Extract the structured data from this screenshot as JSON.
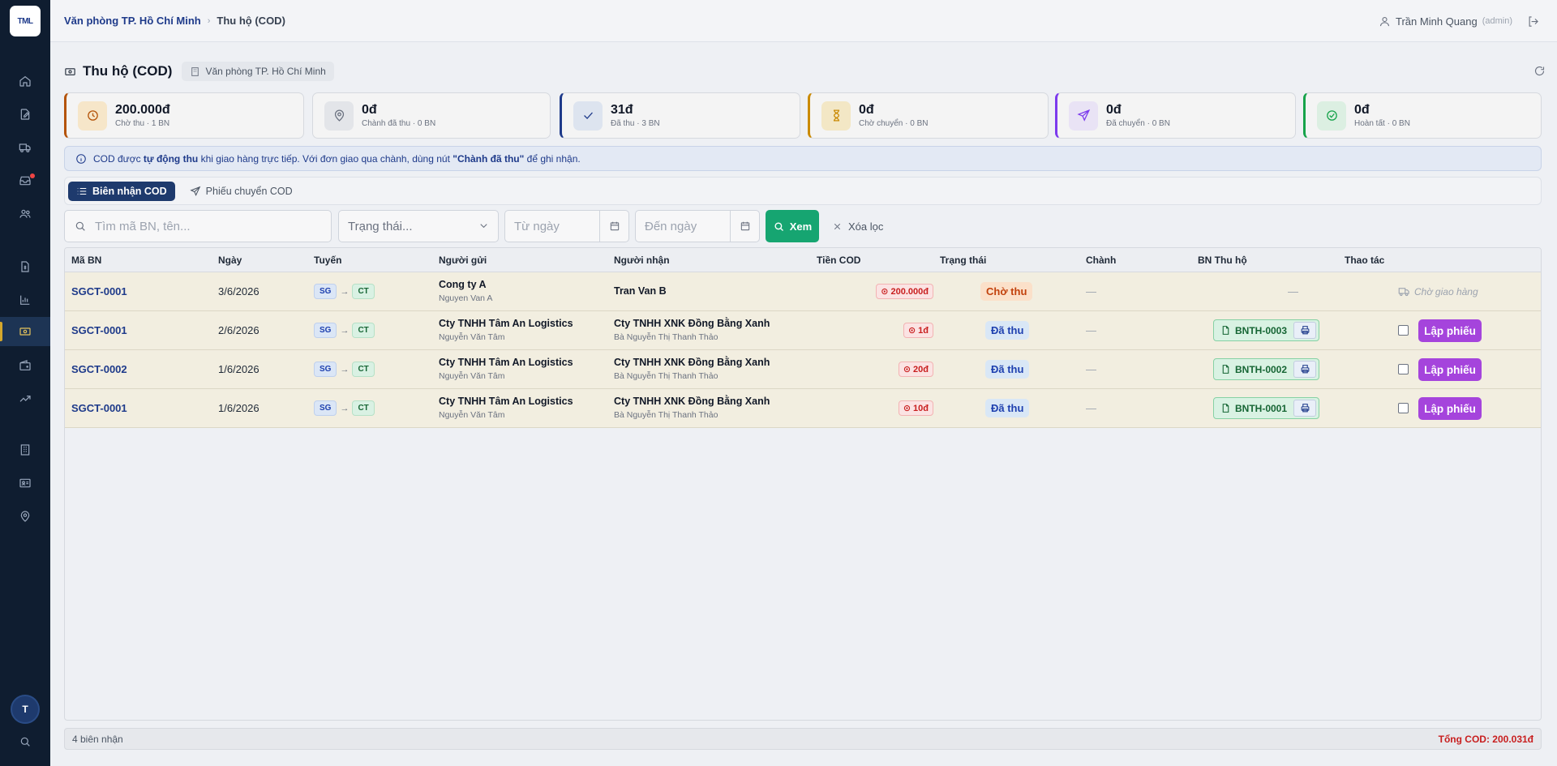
{
  "app": {
    "logo_text": "TML"
  },
  "breadcrumb": {
    "office": "Văn phòng TP. Hồ Chí Minh",
    "current": "Thu hộ (COD)"
  },
  "user": {
    "name": "Trần Minh Quang",
    "role": "(admin)",
    "avatar_initial": "T"
  },
  "page": {
    "title": "Thu hộ (COD)",
    "office_chip": "Văn phòng TP. Hồ Chí Minh"
  },
  "stats": [
    {
      "value": "200.000đ",
      "label": "Chờ thu · 1 BN",
      "icon": "clock-icon",
      "accent": "#b45309"
    },
    {
      "value": "0đ",
      "label": "Chành đã thu · 0 BN",
      "icon": "map-pin-icon",
      "accent": "#6b7280"
    },
    {
      "value": "31đ",
      "label": "Đã thu · 3 BN",
      "icon": "check-icon",
      "accent": "#1e3a8a"
    },
    {
      "value": "0đ",
      "label": "Chờ chuyển · 0 BN",
      "icon": "hourglass-icon",
      "accent": "#ca8a04"
    },
    {
      "value": "0đ",
      "label": "Đã chuyển · 0 BN",
      "icon": "send-icon",
      "accent": "#7c3aed"
    },
    {
      "value": "0đ",
      "label": "Hoàn tất · 0 BN",
      "icon": "check-circle-icon",
      "accent": "#16a34a"
    }
  ],
  "info": {
    "prefix": "COD được",
    "bold1": "tự động thu",
    "middle": "khi giao hàng trực tiếp. Với đơn giao qua chành, dùng nút",
    "bold2": "\"Chành đã thu\"",
    "suffix": "để ghi nhận."
  },
  "tabs": [
    {
      "label": "Biên nhận COD"
    },
    {
      "label": "Phiếu chuyển COD"
    }
  ],
  "filters": {
    "search_placeholder": "Tìm mã BN, tên...",
    "status_placeholder": "Trạng thái...",
    "from_placeholder": "Từ ngày",
    "to_placeholder": "Đến ngày",
    "view_label": "Xem",
    "clear_label": "Xóa lọc"
  },
  "table": {
    "headers": [
      "Mã BN",
      "Ngày",
      "Tuyến",
      "Người gửi",
      "Người nhận",
      "Tiền COD",
      "Trạng thái",
      "Chành",
      "BN Thu hộ",
      "Thao tác"
    ],
    "rows": [
      {
        "code": "SGCT-0001",
        "date": "3/6/2026",
        "from": "SG",
        "to": "CT",
        "sender": "Cong ty A",
        "sender_sub": "Nguyen Van A",
        "receiver": "Tran Van B",
        "receiver_sub": "",
        "cod": "200.000đ",
        "status": "Chờ thu",
        "chanh": "—",
        "bn": "—",
        "action": "Chờ giao hàng"
      },
      {
        "code": "SGCT-0001",
        "date": "2/6/2026",
        "from": "SG",
        "to": "CT",
        "sender": "Cty TNHH Tâm An Logistics",
        "sender_sub": "Nguyễn Văn Tâm",
        "receiver": "Cty TNHH XNK Đồng Bằng Xanh",
        "receiver_sub": "Bà Nguyễn Thị Thanh Thảo",
        "cod": "1đ",
        "status": "Đã thu",
        "chanh": "—",
        "bn": "BNTH-0003",
        "action": "Lập phiếu"
      },
      {
        "code": "SGCT-0002",
        "date": "1/6/2026",
        "from": "SG",
        "to": "CT",
        "sender": "Cty TNHH Tâm An Logistics",
        "sender_sub": "Nguyễn Văn Tâm",
        "receiver": "Cty TNHH XNK Đồng Bằng Xanh",
        "receiver_sub": "Bà Nguyễn Thị Thanh Thảo",
        "cod": "20đ",
        "status": "Đã thu",
        "chanh": "—",
        "bn": "BNTH-0002",
        "action": "Lập phiếu"
      },
      {
        "code": "SGCT-0001",
        "date": "1/6/2026",
        "from": "SG",
        "to": "CT",
        "sender": "Cty TNHH Tâm An Logistics",
        "sender_sub": "Nguyễn Văn Tâm",
        "receiver": "Cty TNHH XNK Đồng Bằng Xanh",
        "receiver_sub": "Bà Nguyễn Thị Thanh Thảo",
        "cod": "10đ",
        "status": "Đã thu",
        "chanh": "—",
        "bn": "BNTH-0001",
        "action": "Lập phiếu"
      }
    ]
  },
  "footer": {
    "count": "4 biên nhận",
    "total": "Tổng COD: 200.031đ"
  }
}
